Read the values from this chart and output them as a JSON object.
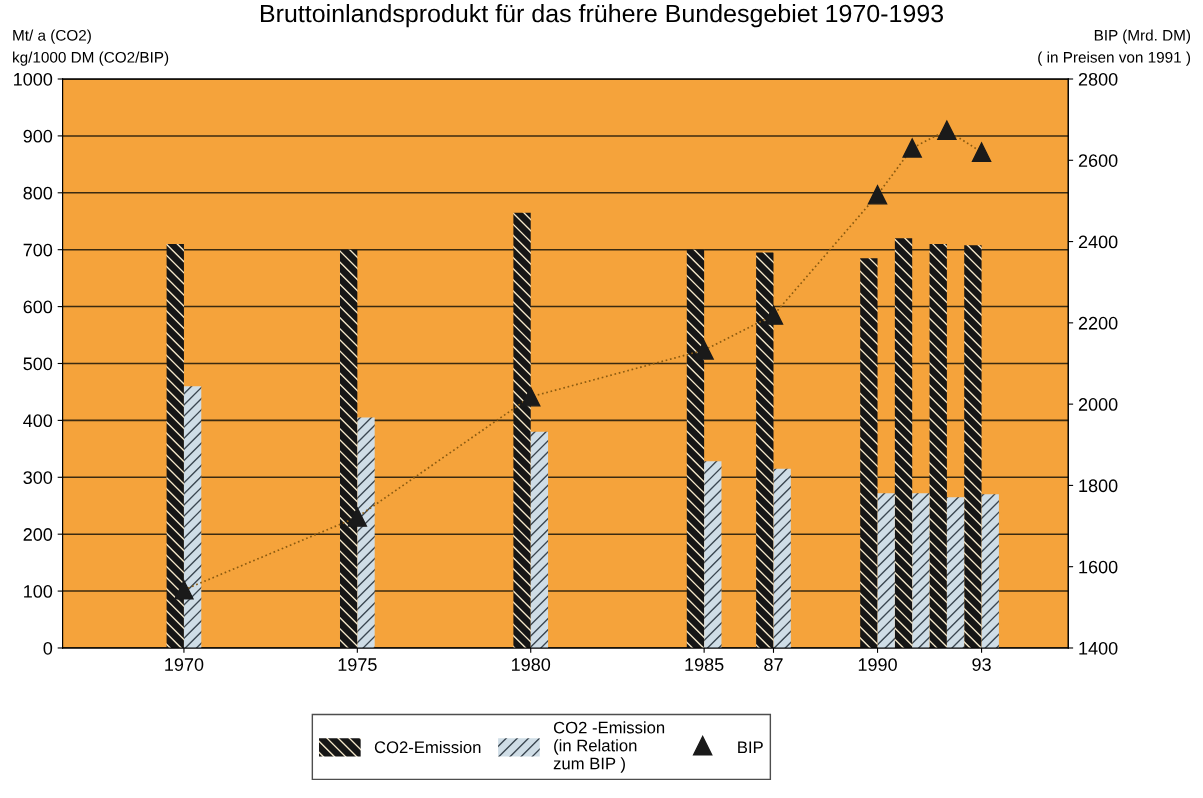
{
  "chart_data": {
    "type": "bar",
    "title": "Bruttoinlandsprodukt für das frühere Bundesgebiet 1970-1993",
    "ylabel": "Mt/ a (CO2)\nkg/1000 DM (CO2/BIP)",
    "y2label": "BIP (Mrd. DM)\n( in Preisen von 1991 )",
    "x": [
      1970,
      1975,
      1980,
      1985,
      1987,
      1990,
      1991,
      1992,
      1993
    ],
    "series": [
      {
        "name": "CO2-Emission",
        "color": "#161616",
        "values": [
          710,
          700,
          765,
          700,
          695,
          685,
          720,
          710,
          708
        ]
      },
      {
        "name": "CO2 -Emission\n(in Relation\nzum BIP )",
        "color": "#cfdde6",
        "values": [
          460,
          405,
          380,
          328,
          315,
          272,
          272,
          265,
          270
        ]
      },
      {
        "name": "BIP",
        "type": "line",
        "axis": "y2",
        "color": "#1a1a1a",
        "marker": "triangle",
        "line_style": "dotted",
        "values": [
          1543,
          1722,
          2018,
          2133,
          2219,
          2515,
          2630,
          2674,
          2620
        ]
      }
    ],
    "xlim": [
      1966.5,
      1995.5
    ],
    "xticks": [
      1970,
      1975,
      1980,
      1985,
      {
        "value": 1987,
        "label": "87"
      },
      1990,
      {
        "value": 1993,
        "label": "93"
      }
    ],
    "ylim": [
      0,
      1000
    ],
    "yticks": [
      0,
      100,
      200,
      300,
      400,
      500,
      600,
      700,
      800,
      900,
      1000
    ],
    "y2lim": [
      1400,
      2800
    ],
    "y2ticks": [
      1400,
      1600,
      1800,
      2000,
      2200,
      2400,
      2600,
      2800
    ],
    "grid": "y",
    "legend": "bottom"
  }
}
